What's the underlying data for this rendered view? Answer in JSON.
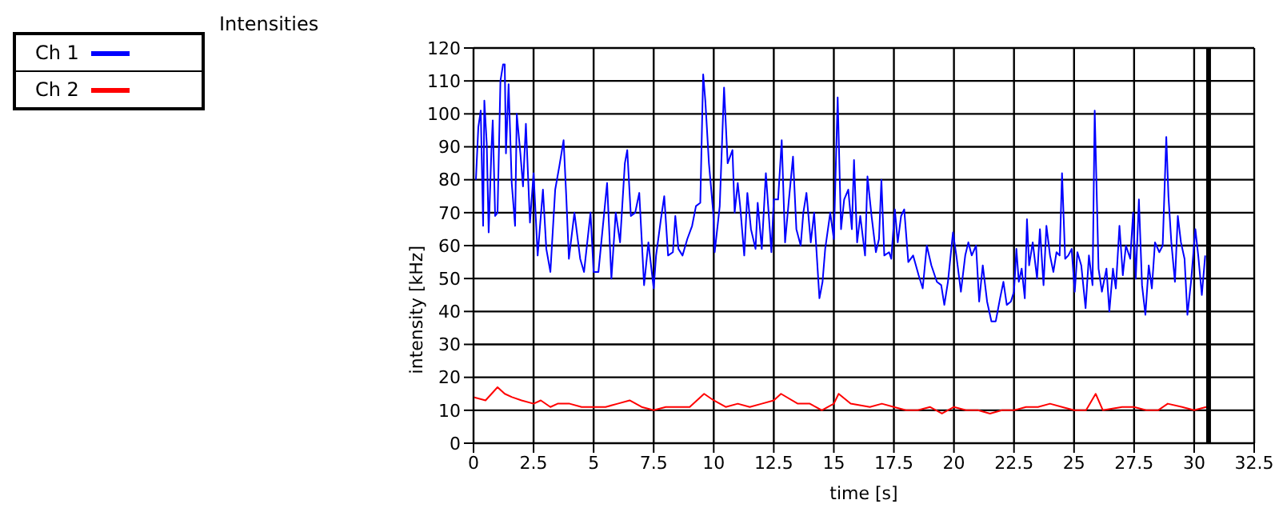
{
  "chart_data": {
    "type": "line",
    "title": "Intensities",
    "xlabel": "time [s]",
    "ylabel": "intensity [kHz]",
    "xlim": [
      0,
      32.5
    ],
    "xticks": [
      0,
      2.5,
      5,
      7.5,
      10,
      12.5,
      15,
      17.5,
      20,
      22.5,
      25,
      27.5,
      30,
      32.5
    ],
    "ylim": [
      0,
      120
    ],
    "yticks": [
      0,
      10,
      20,
      30,
      40,
      50,
      60,
      70,
      80,
      90,
      100,
      110,
      120
    ],
    "grid": true,
    "legend": "top left",
    "marker": "none",
    "line_style": "solid",
    "ref_lines": [
      {
        "axis": "x",
        "value": 30.6,
        "color": "#000000"
      }
    ],
    "series": [
      {
        "name": "Ch 1",
        "color": "#0000ff",
        "x": [
          0.1,
          0.2,
          0.3,
          0.4,
          0.45,
          0.55,
          0.63,
          0.75,
          0.8,
          0.9,
          1.0,
          1.12,
          1.23,
          1.3,
          1.35,
          1.46,
          1.59,
          1.73,
          1.8,
          1.95,
          2.06,
          2.18,
          2.35,
          2.5,
          2.67,
          2.89,
          3.03,
          3.2,
          3.4,
          3.57,
          3.75,
          3.86,
          3.97,
          4.2,
          4.44,
          4.6,
          4.87,
          5.0,
          5.2,
          5.56,
          5.74,
          5.92,
          6.1,
          6.3,
          6.4,
          6.55,
          6.73,
          6.9,
          7.1,
          7.28,
          7.5,
          7.6,
          7.8,
          7.94,
          8.1,
          8.3,
          8.4,
          8.53,
          8.7,
          8.9,
          9.1,
          9.26,
          9.44,
          9.56,
          9.65,
          9.8,
          9.98,
          10.04,
          10.25,
          10.43,
          10.58,
          10.78,
          10.87,
          11.0,
          11.1,
          11.27,
          11.4,
          11.55,
          11.74,
          11.83,
          12.0,
          12.17,
          12.4,
          12.5,
          12.68,
          12.83,
          12.97,
          13.13,
          13.3,
          13.44,
          13.62,
          13.73,
          13.86,
          14.04,
          14.18,
          14.4,
          14.53,
          14.64,
          14.85,
          15.0,
          15.16,
          15.3,
          15.43,
          15.6,
          15.75,
          15.84,
          15.97,
          16.1,
          16.3,
          16.4,
          16.57,
          16.75,
          16.88,
          16.98,
          17.1,
          17.3,
          17.39,
          17.54,
          17.66,
          17.8,
          17.93,
          18.1,
          18.3,
          18.53,
          18.7,
          18.87,
          19.06,
          19.29,
          19.47,
          19.6,
          19.75,
          19.96,
          20.1,
          20.29,
          20.47,
          20.6,
          20.74,
          20.92,
          21.05,
          21.2,
          21.38,
          21.56,
          21.74,
          21.92,
          22.06,
          22.2,
          22.37,
          22.5,
          22.6,
          22.7,
          22.82,
          22.95,
          23.04,
          23.13,
          23.28,
          23.46,
          23.58,
          23.73,
          23.85,
          24.0,
          24.14,
          24.27,
          24.4,
          24.5,
          24.63,
          24.76,
          24.9,
          25.03,
          25.14,
          25.3,
          25.48,
          25.62,
          25.77,
          25.86,
          25.93,
          26.02,
          26.16,
          26.35,
          26.47,
          26.62,
          26.74,
          26.89,
          27.03,
          27.16,
          27.34,
          27.46,
          27.57,
          27.7,
          27.83,
          27.97,
          28.11,
          28.24,
          28.37,
          28.55,
          28.69,
          28.84,
          28.93,
          29.05,
          29.2,
          29.32,
          29.45,
          29.6,
          29.72,
          29.87,
          30.05,
          30.17,
          30.32,
          30.46
        ],
        "values": [
          80,
          96,
          101,
          66,
          104,
          91,
          64,
          90,
          98,
          69,
          70,
          110,
          115,
          115,
          88,
          109,
          79,
          66,
          100,
          88,
          78,
          97,
          67,
          82,
          57,
          77,
          59,
          52,
          77,
          84,
          92,
          75,
          56,
          70,
          56,
          52,
          70,
          52,
          52,
          79,
          50,
          70,
          61,
          85,
          89,
          69,
          70,
          76,
          48,
          61,
          47,
          57,
          68,
          75,
          57,
          58,
          69,
          59,
          57,
          62,
          66,
          72,
          73,
          112,
          104,
          85,
          70,
          58,
          72,
          108,
          85,
          89,
          70,
          79,
          72,
          57,
          76,
          65,
          59,
          73,
          59,
          82,
          58,
          74,
          74,
          92,
          61,
          74,
          87,
          65,
          60,
          70,
          76,
          61,
          70,
          44,
          49,
          59,
          70,
          62,
          105,
          65,
          74,
          77,
          65,
          86,
          61,
          69,
          57,
          81,
          69,
          58,
          62,
          80,
          57,
          58,
          56,
          71,
          61,
          69,
          71,
          55,
          57,
          51,
          47,
          60,
          54,
          49,
          48,
          42,
          49,
          64,
          57,
          46,
          57,
          61,
          57,
          60,
          43,
          54,
          43,
          37,
          37,
          44,
          49,
          42,
          43,
          46,
          59,
          49,
          53,
          44,
          68,
          54,
          61,
          50,
          65,
          48,
          66,
          57,
          52,
          58,
          57,
          82,
          56,
          57,
          59,
          46,
          58,
          54,
          41,
          57,
          48,
          101,
          80,
          53,
          46,
          53,
          40,
          53,
          47,
          66,
          51,
          60,
          56,
          70,
          50,
          74,
          48,
          39,
          54,
          47,
          61,
          58,
          60,
          93,
          75,
          61,
          49,
          69,
          61,
          56,
          39,
          49,
          65,
          57,
          45,
          57
        ]
      },
      {
        "name": "Ch 2",
        "color": "#ff0000",
        "x": [
          0,
          0.5,
          1.0,
          1.3,
          1.6,
          2.0,
          2.5,
          2.8,
          3.2,
          3.5,
          4,
          4.5,
          5,
          5.5,
          6,
          6.5,
          7,
          7.5,
          8,
          8.5,
          9,
          9.6,
          10,
          10.5,
          11,
          11.5,
          12,
          12.5,
          12.8,
          13.5,
          14,
          14.5,
          15,
          15.2,
          15.7,
          16.5,
          17,
          17.5,
          18,
          18.5,
          19,
          19.5,
          20,
          20.5,
          21,
          21.5,
          22,
          22.5,
          23,
          23.5,
          24,
          24.5,
          25,
          25.5,
          25.9,
          26.2,
          27,
          27.5,
          28,
          28.5,
          28.9,
          29.5,
          30,
          30.5
        ],
        "values": [
          14,
          13,
          17,
          15,
          14,
          13,
          12,
          13,
          11,
          12,
          12,
          11,
          11,
          11,
          12,
          13,
          11,
          10,
          11,
          11,
          11,
          15,
          13,
          11,
          12,
          11,
          12,
          13,
          15,
          12,
          12,
          10,
          12,
          15,
          12,
          11,
          12,
          11,
          10,
          10,
          11,
          9,
          11,
          10,
          10,
          9,
          10,
          10,
          11,
          11,
          12,
          11,
          10,
          10,
          15,
          10,
          11,
          11,
          10,
          10,
          12,
          11,
          10,
          11
        ]
      }
    ]
  }
}
